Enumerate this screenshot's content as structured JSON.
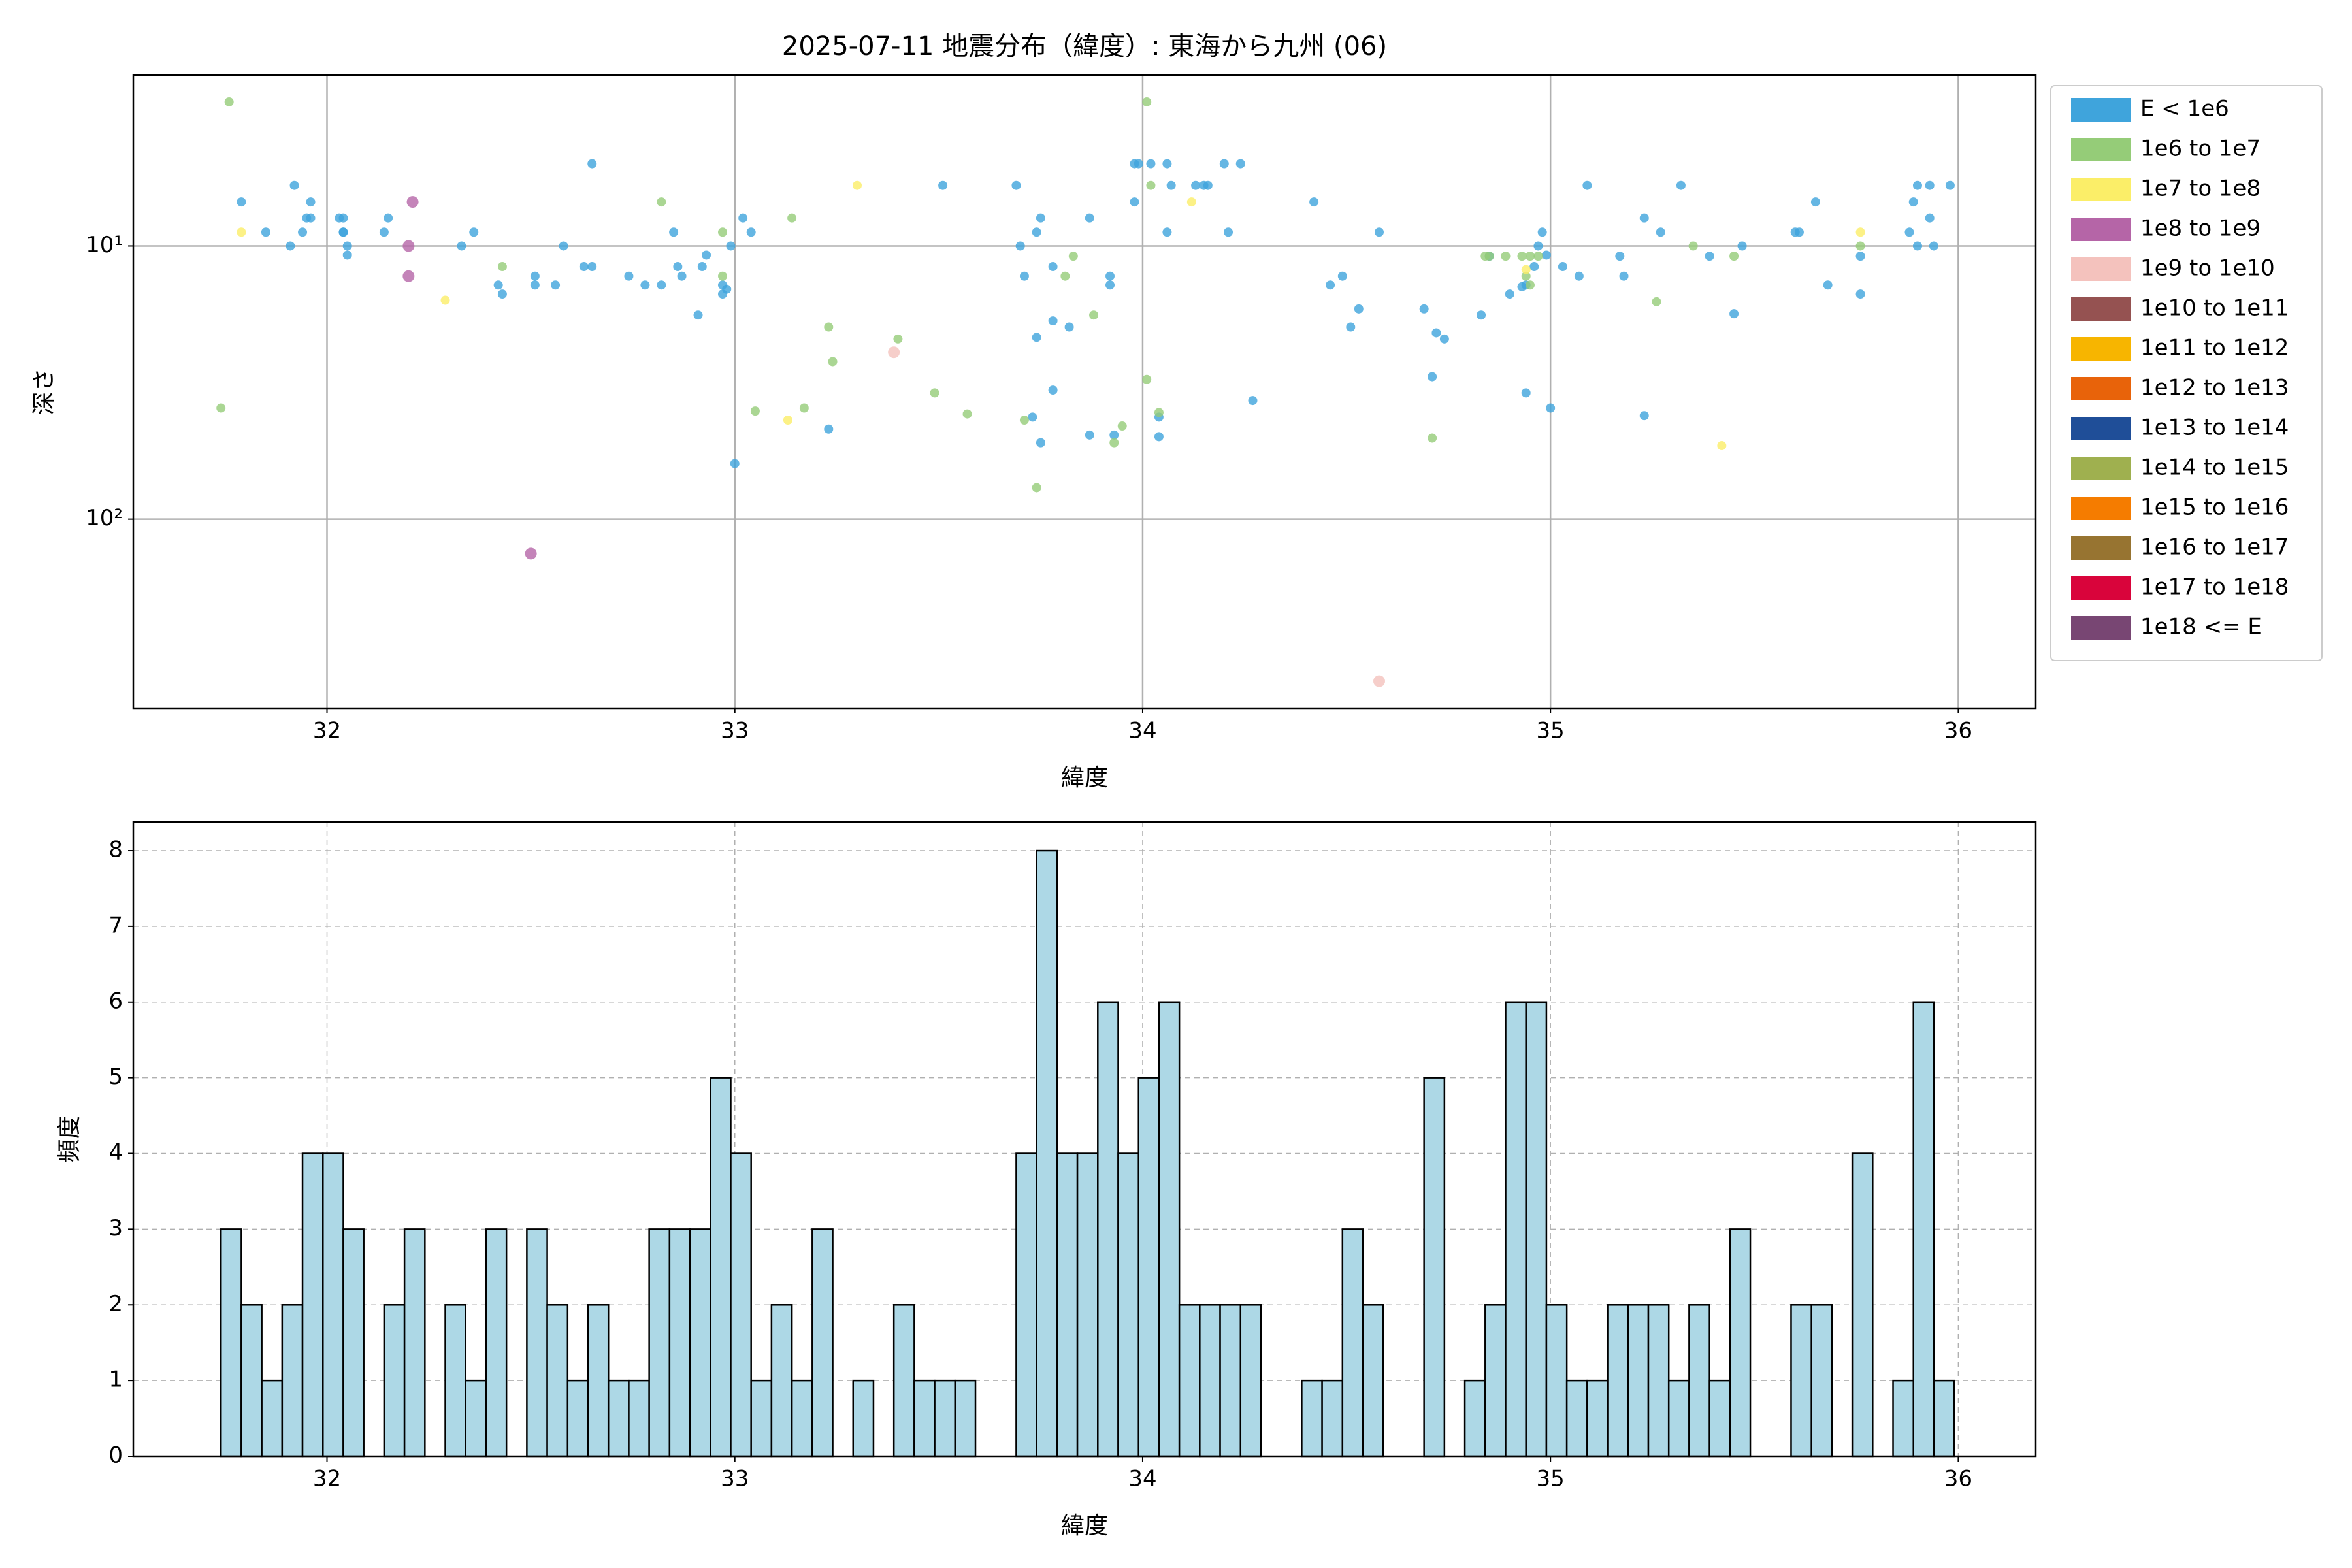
{
  "chart_data": [
    {
      "type": "scatter",
      "title": "2025-07-11 地震分布（緯度）: 東海から九州 (06)",
      "xlabel": "緯度",
      "ylabel": "深さ",
      "xlim": [
        31.525,
        36.19
      ],
      "ylim": [
        2.37,
        492
      ],
      "y_log": true,
      "y_inverted": true,
      "xticks": [
        32,
        33,
        34,
        35,
        36
      ],
      "yticks": [
        {
          "value": 10,
          "label": "10¹"
        },
        {
          "value": 100,
          "label": "10²"
        }
      ],
      "grid": true,
      "legend": "outside-right",
      "series": [
        {
          "name": "E < 1e6",
          "color": "#3fa4dc",
          "x": [
            31.79,
            31.85,
            31.91,
            31.92,
            31.94,
            31.95,
            31.96,
            31.96,
            32.03,
            32.04,
            32.04,
            32.04,
            32.05,
            32.05,
            32.14,
            32.15,
            32.33,
            32.36,
            32.42,
            32.43,
            32.51,
            32.51,
            32.56,
            32.58,
            32.63,
            32.65,
            32.65,
            32.74,
            32.78,
            32.82,
            32.86,
            32.87,
            32.85,
            32.91,
            32.92,
            32.93,
            32.97,
            32.97,
            32.98,
            32.99,
            33.0,
            33.02,
            33.04,
            33.23,
            33.51,
            33.69,
            33.7,
            33.71,
            33.74,
            33.74,
            33.75,
            33.78,
            33.78,
            33.82,
            33.87,
            33.92,
            33.92,
            33.73,
            33.75,
            33.78,
            33.87,
            33.93,
            33.98,
            33.98,
            33.99,
            34.02,
            34.04,
            34.04,
            34.06,
            34.06,
            34.07,
            34.13,
            34.15,
            34.16,
            34.2,
            34.21,
            34.24,
            34.27,
            34.42,
            34.46,
            34.49,
            34.51,
            34.53,
            34.58,
            34.69,
            34.71,
            34.72,
            34.74,
            34.83,
            34.85,
            34.9,
            34.94,
            34.94,
            34.96,
            34.97,
            34.98,
            34.99,
            35.0,
            35.03,
            35.07,
            35.09,
            35.17,
            35.18,
            35.23,
            35.23,
            35.27,
            35.32,
            35.39,
            35.47,
            35.45,
            35.6,
            35.61,
            35.65,
            35.68,
            35.76,
            35.76,
            35.89,
            35.9,
            35.9,
            35.93,
            35.93,
            35.94,
            35.98,
            35.88,
            34.93
          ],
          "y": [
            6.9,
            8.9,
            10,
            6.0,
            8.9,
            7.9,
            7.9,
            6.9,
            7.9,
            7.9,
            8.9,
            8.9,
            10,
            10.8,
            8.9,
            7.9,
            10,
            8.9,
            13.9,
            15.0,
            12.9,
            13.9,
            13.9,
            10,
            11.9,
            11.9,
            5.0,
            12.9,
            13.9,
            13.9,
            11.9,
            12.9,
            8.9,
            17.9,
            11.9,
            10.8,
            13.9,
            15.0,
            14.4,
            10,
            62.6,
            7.9,
            8.9,
            46.8,
            6.0,
            6.0,
            10,
            12.9,
            21.6,
            8.9,
            7.9,
            11.9,
            18.8,
            19.8,
            7.9,
            13.9,
            12.9,
            42.3,
            52.5,
            33.7,
            49.2,
            49.2,
            5.0,
            6.9,
            5.0,
            5.0,
            42.3,
            49.9,
            5.0,
            8.9,
            6.0,
            6.0,
            6.0,
            6.0,
            5.0,
            8.9,
            5.0,
            36.8,
            6.9,
            13.9,
            12.9,
            19.8,
            17.0,
            8.9,
            17.0,
            30.1,
            20.8,
            21.9,
            17.9,
            10.9,
            15.0,
            34.5,
            13.9,
            11.9,
            10,
            8.9,
            10.8,
            39.2,
            11.9,
            12.9,
            6.0,
            10.9,
            12.9,
            7.9,
            41.8,
            8.9,
            6.0,
            10.9,
            10,
            17.7,
            8.9,
            8.9,
            6.9,
            13.9,
            15.0,
            10.9,
            6.9,
            6.0,
            10,
            6.0,
            7.9,
            10,
            6.0,
            8.9,
            14.1
          ]
        },
        {
          "name": "1e6 to 1e7",
          "color": "#95cc78",
          "x": [
            31.76,
            31.74,
            32.43,
            32.82,
            32.97,
            32.97,
            33.05,
            33.14,
            33.17,
            33.23,
            33.24,
            33.4,
            33.49,
            33.57,
            33.71,
            33.74,
            33.81,
            33.83,
            33.88,
            33.93,
            33.95,
            34.01,
            34.02,
            34.01,
            34.04,
            34.71,
            34.84,
            34.85,
            34.89,
            34.93,
            34.95,
            34.94,
            34.95,
            34.97,
            35.26,
            35.35,
            35.45,
            35.76
          ],
          "y": [
            2.97,
            39.2,
            11.9,
            6.9,
            8.9,
            12.9,
            40.2,
            7.9,
            39.2,
            19.8,
            26.5,
            21.9,
            34.5,
            41.2,
            43.4,
            76.7,
            12.9,
            10.9,
            17.9,
            52.5,
            45.6,
            2.97,
            6.0,
            30.8,
            40.7,
            50.5,
            10.9,
            10.9,
            10.9,
            10.9,
            10.9,
            12.9,
            13.9,
            10.9,
            16.0,
            10,
            10.9,
            10
          ]
        },
        {
          "name": "1e7 to 1e8",
          "color": "#fbee68",
          "x": [
            31.79,
            32.29,
            33.13,
            33.3,
            34.12,
            35.42,
            35.76,
            34.94
          ],
          "y": [
            8.9,
            15.8,
            43.4,
            6.0,
            6.9,
            53.8,
            8.9,
            12.2
          ]
        },
        {
          "name": "1e8 to 1e9",
          "color": "#b565a7",
          "x": [
            32.21,
            32.2,
            32.2,
            32.5
          ],
          "y": [
            6.9,
            10,
            12.9,
            133.7
          ]
        },
        {
          "name": "1e9 to 1e10",
          "color": "#f4c2bd",
          "x": [
            33.39,
            34.58
          ],
          "y": [
            24.5,
            391.7
          ]
        },
        {
          "name": "1e10 to 1e11",
          "color": "#955251",
          "x": [],
          "y": []
        },
        {
          "name": "1e11 to 1e12",
          "color": "#f7b500",
          "x": [],
          "y": []
        },
        {
          "name": "1e12 to 1e13",
          "color": "#e8630a",
          "x": [],
          "y": []
        },
        {
          "name": "1e13 to 1e14",
          "color": "#1f4e98",
          "x": [],
          "y": []
        },
        {
          "name": "1e14 to 1e15",
          "color": "#9fb04f",
          "x": [],
          "y": []
        },
        {
          "name": "1e15 to 1e16",
          "color": "#f57c00",
          "x": [],
          "y": []
        },
        {
          "name": "1e16 to 1e17",
          "color": "#977431",
          "x": [],
          "y": []
        },
        {
          "name": "1e17 to 1e18",
          "color": "#d9043b",
          "x": [],
          "y": []
        },
        {
          "name": "1e18 <= E",
          "color": "#784673",
          "x": [],
          "y": []
        }
      ]
    },
    {
      "type": "histogram",
      "xlabel": "緯度",
      "ylabel": "頻度",
      "xlim": [
        31.525,
        36.19
      ],
      "ylim": [
        0,
        8.38
      ],
      "xticks": [
        32,
        33,
        34,
        35,
        36
      ],
      "yticks": [
        0,
        1,
        2,
        3,
        4,
        5,
        6,
        7,
        8
      ],
      "grid": true,
      "color": "#add8e6",
      "edgecolor": "#000000",
      "bins": [
        31.74,
        31.79,
        31.84,
        31.89,
        31.94,
        31.99,
        32.04,
        32.09,
        32.14,
        32.19,
        32.24,
        32.29,
        32.34,
        32.39,
        32.44,
        32.49,
        32.54,
        32.59,
        32.64,
        32.69,
        32.74,
        32.79,
        32.84,
        32.89,
        32.94,
        32.99,
        33.04,
        33.09,
        33.14,
        33.19,
        33.24,
        33.29,
        33.34,
        33.39,
        33.44,
        33.49,
        33.54,
        33.59,
        33.64,
        33.69,
        33.74,
        33.79,
        33.84,
        33.89,
        33.94,
        33.99,
        34.04,
        34.09,
        34.14,
        34.19,
        34.24,
        34.29,
        34.34,
        34.39,
        34.44,
        34.49,
        34.54,
        34.59,
        34.64,
        34.69,
        34.74,
        34.79,
        34.84,
        34.89,
        34.94,
        34.99,
        35.04,
        35.09,
        35.14,
        35.19,
        35.24,
        35.29,
        35.34,
        35.39,
        35.44,
        35.49,
        35.54,
        35.59,
        35.64,
        35.69,
        35.74,
        35.79,
        35.84,
        35.89,
        35.94,
        35.99
      ],
      "counts": [
        3,
        2,
        1,
        2,
        4,
        4,
        3,
        0,
        2,
        3,
        0,
        2,
        1,
        3,
        0,
        3,
        2,
        1,
        2,
        1,
        1,
        3,
        3,
        3,
        5,
        4,
        1,
        2,
        1,
        3,
        0,
        1,
        0,
        2,
        1,
        1,
        1,
        0,
        0,
        4,
        8,
        4,
        4,
        6,
        4,
        5,
        6,
        2,
        2,
        2,
        2,
        0,
        0,
        1,
        1,
        3,
        2,
        0,
        0,
        5,
        0,
        1,
        2,
        6,
        6,
        2,
        1,
        1,
        2,
        2,
        2,
        1,
        2,
        1,
        3,
        0,
        0,
        2,
        2,
        0,
        4,
        0,
        1,
        6,
        1
      ]
    }
  ]
}
